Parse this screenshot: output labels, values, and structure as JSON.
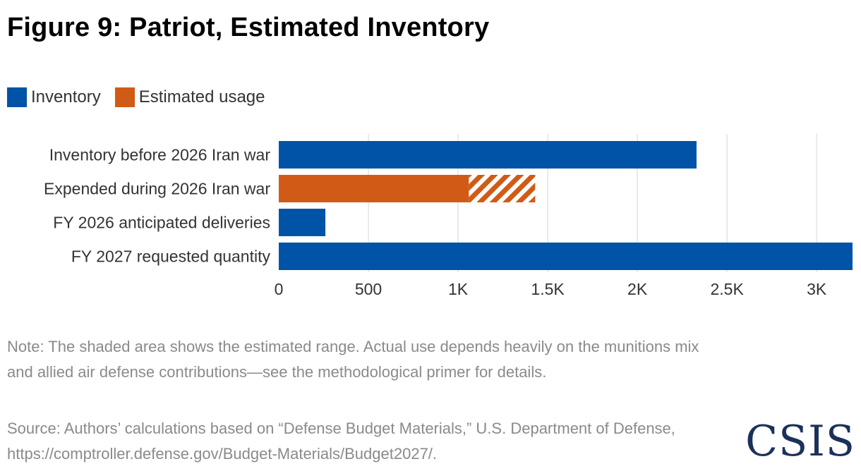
{
  "figure": {
    "title": "Figure 9: Patriot, Estimated Inventory",
    "note": "Note: The shaded area shows the estimated range. Actual use depends heavily on the munitions mix and allied air defense contributions—see the methodological primer for details.",
    "source": "Source: Authors’ calculations based on “Defense Budget Materials,” U.S. Department of Defense, https://comptroller.defense.gov/Budget-Materials/Budget2027/.",
    "logo": "CSIS"
  },
  "legend": [
    {
      "label": "Inventory",
      "color": "#0053a6"
    },
    {
      "label": "Estimated usage",
      "color": "#d15b16"
    }
  ],
  "colors": {
    "inventory": "#0053a6",
    "usage": "#d15b16",
    "grid": "#e3e3e3"
  },
  "chart_data": {
    "type": "bar",
    "orientation": "horizontal",
    "title": "Figure 9: Patriot, Estimated Inventory",
    "categories": [
      "Inventory before 2026 Iran war",
      "Expended during 2026 Iran war",
      "FY 2026 anticipated deliveries",
      "FY 2027 requested quantity"
    ],
    "bars": [
      {
        "category": "Inventory before 2026 Iran war",
        "series": "Inventory",
        "value": 2330
      },
      {
        "category": "Expended during 2026 Iran war",
        "series": "Estimated usage",
        "value": 1060,
        "range_high": 1430
      },
      {
        "category": "FY 2026 anticipated deliveries",
        "series": "Inventory",
        "value": 260
      },
      {
        "category": "FY 2027 requested quantity",
        "series": "Inventory",
        "value": 3200
      }
    ],
    "xlim": [
      0,
      3200
    ],
    "xticks": [
      0,
      500,
      1000,
      1500,
      2000,
      2500,
      3000
    ],
    "xtick_labels": [
      "0",
      "500",
      "1K",
      "1.5K",
      "2K",
      "2.5K",
      "3K"
    ],
    "xlabel": "",
    "ylabel": "",
    "grid": "vertical",
    "legend_position": "top-left"
  }
}
